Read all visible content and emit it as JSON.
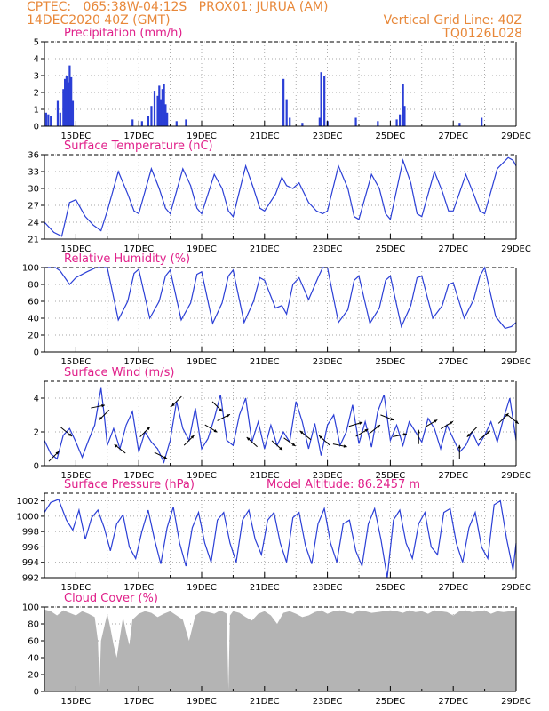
{
  "header": {
    "left_line1": "CPTEC:   065:38W-04:12S   PROX01: JURUA (AM)",
    "left_line2": "14DEC2020 40Z (GMT)",
    "right_line1": "Vertical Grid Line: 40Z",
    "right_line2": "TQ0126L028"
  },
  "colors": {
    "header_text": "#e8883a",
    "panel_title": "#e0208a",
    "series_line": "#2b3fd6",
    "cloud_fill": "#b4b4b4"
  },
  "x_ticks": [
    "15DEC",
    "17DEC",
    "19DEC",
    "21DEC",
    "23DEC",
    "25DEC",
    "27DEC",
    "29DEC"
  ],
  "chart_data": [
    {
      "type": "bar",
      "title": "Precipitation  (mm/h)",
      "x_range": [
        14.0,
        29.0
      ],
      "ylim": [
        0,
        5
      ],
      "yticks": [
        0,
        1,
        2,
        3,
        4,
        5
      ],
      "grid": true,
      "x": [
        14.05,
        14.12,
        14.2,
        14.42,
        14.5,
        14.6,
        14.65,
        14.7,
        14.75,
        14.8,
        14.85,
        14.9,
        16.8,
        17.1,
        17.3,
        17.4,
        17.5,
        17.6,
        17.65,
        17.7,
        17.75,
        17.8,
        17.85,
        17.9,
        18.2,
        18.5,
        21.6,
        21.7,
        21.8,
        22.2,
        22.75,
        22.8,
        22.9,
        23.0,
        23.9,
        24.6,
        25.2,
        25.3,
        25.4,
        25.45,
        27.2,
        27.9
      ],
      "values": [
        0.8,
        0.7,
        0.6,
        1.5,
        0.8,
        2.2,
        2.8,
        3.0,
        2.6,
        3.6,
        2.9,
        1.5,
        0.4,
        0.3,
        0.6,
        1.2,
        2.1,
        1.8,
        2.4,
        1.6,
        2.2,
        2.5,
        1.3,
        0.8,
        0.3,
        0.4,
        2.8,
        1.6,
        0.5,
        0.2,
        0.5,
        3.2,
        3.0,
        0.3,
        0.5,
        0.3,
        0.4,
        0.7,
        2.5,
        1.2,
        0.2,
        0.5
      ]
    },
    {
      "type": "line",
      "title": "Surface Temperature  (nC)",
      "x_range": [
        14.0,
        29.0
      ],
      "ylim": [
        21,
        36
      ],
      "yticks": [
        21,
        24,
        27,
        30,
        33,
        36
      ],
      "grid": true,
      "series": [
        {
          "x": [
            14.0,
            14.3,
            14.55,
            14.8,
            15.0,
            15.3,
            15.55,
            15.8,
            16.0,
            16.35,
            16.65,
            16.85,
            17.0,
            17.4,
            17.65,
            17.85,
            18.0,
            18.4,
            18.65,
            18.85,
            19.0,
            19.4,
            19.65,
            19.85,
            20.0,
            20.4,
            20.65,
            20.85,
            21.0,
            21.35,
            21.55,
            21.7,
            21.9,
            22.1,
            22.4,
            22.65,
            22.85,
            23.0,
            23.35,
            23.65,
            23.85,
            24.0,
            24.4,
            24.65,
            24.85,
            25.0,
            25.4,
            25.65,
            25.85,
            26.0,
            26.4,
            26.65,
            26.85,
            27.0,
            27.4,
            27.65,
            27.85,
            28.0,
            28.4,
            28.75,
            28.9,
            29.0
          ],
          "values": [
            24.0,
            22.2,
            21.5,
            27.5,
            28.0,
            25.0,
            23.5,
            22.5,
            26.0,
            33.0,
            29.0,
            26.0,
            25.5,
            33.5,
            30.0,
            26.5,
            25.5,
            33.5,
            30.5,
            26.5,
            25.5,
            32.5,
            30.0,
            26.0,
            25.0,
            34.0,
            30.0,
            26.5,
            26.0,
            29.0,
            32.0,
            30.5,
            30.0,
            31.0,
            27.5,
            26.0,
            25.5,
            26.0,
            34.0,
            30.0,
            25.0,
            24.5,
            32.5,
            30.0,
            25.5,
            24.5,
            35.0,
            31.0,
            25.5,
            25.0,
            33.0,
            29.5,
            26.0,
            26.0,
            32.5,
            29.0,
            26.0,
            25.5,
            33.5,
            35.5,
            35.0,
            34.0
          ]
        }
      ]
    },
    {
      "type": "line",
      "title": "Relative Humidity  (%)",
      "x_range": [
        14.0,
        29.0
      ],
      "ylim": [
        0,
        100
      ],
      "yticks": [
        0,
        20,
        40,
        60,
        80,
        100
      ],
      "grid": true,
      "series": [
        {
          "x": [
            14.0,
            14.2,
            14.35,
            14.5,
            14.65,
            14.8,
            15.0,
            15.35,
            15.65,
            15.85,
            16.0,
            16.35,
            16.65,
            16.85,
            17.0,
            17.35,
            17.65,
            17.85,
            18.0,
            18.35,
            18.65,
            18.85,
            19.0,
            19.35,
            19.65,
            19.85,
            20.0,
            20.35,
            20.65,
            20.85,
            21.0,
            21.35,
            21.55,
            21.7,
            21.9,
            22.1,
            22.4,
            22.7,
            22.85,
            23.0,
            23.35,
            23.65,
            23.85,
            24.0,
            24.35,
            24.65,
            24.85,
            25.0,
            25.35,
            25.65,
            25.85,
            26.0,
            26.35,
            26.65,
            26.85,
            27.0,
            27.35,
            27.65,
            27.85,
            28.0,
            28.35,
            28.65,
            28.85,
            29.0
          ],
          "values": [
            100,
            100,
            100,
            96,
            88,
            80,
            88,
            95,
            100,
            100,
            100,
            38,
            60,
            93,
            98,
            40,
            60,
            90,
            97,
            38,
            58,
            92,
            95,
            34,
            58,
            90,
            97,
            35,
            60,
            88,
            85,
            52,
            55,
            45,
            80,
            88,
            62,
            88,
            100,
            100,
            35,
            50,
            85,
            90,
            34,
            52,
            85,
            90,
            30,
            55,
            88,
            90,
            40,
            55,
            80,
            82,
            40,
            62,
            90,
            100,
            42,
            28,
            30,
            35
          ]
        }
      ]
    },
    {
      "type": "line",
      "title": "Surface Wind  (m/s)",
      "x_range": [
        14.0,
        29.0
      ],
      "ylim": [
        0,
        5
      ],
      "yticks": [
        0,
        2,
        4
      ],
      "grid": true,
      "series": [
        {
          "x": [
            14.0,
            14.2,
            14.4,
            14.6,
            14.8,
            15.0,
            15.2,
            15.4,
            15.6,
            15.8,
            15.9,
            16.0,
            16.2,
            16.4,
            16.6,
            16.8,
            17.0,
            17.2,
            17.4,
            17.6,
            17.8,
            18.0,
            18.2,
            18.4,
            18.6,
            18.8,
            19.0,
            19.2,
            19.4,
            19.6,
            19.8,
            20.0,
            20.2,
            20.4,
            20.6,
            20.8,
            21.0,
            21.2,
            21.4,
            21.6,
            21.8,
            22.0,
            22.2,
            22.4,
            22.6,
            22.8,
            23.0,
            23.2,
            23.4,
            23.6,
            23.8,
            24.0,
            24.2,
            24.4,
            24.6,
            24.8,
            25.0,
            25.2,
            25.4,
            25.6,
            25.8,
            26.0,
            26.2,
            26.4,
            26.6,
            26.8,
            27.0,
            27.2,
            27.4,
            27.6,
            27.8,
            28.0,
            28.2,
            28.4,
            28.6,
            28.8,
            29.0
          ],
          "values": [
            1.5,
            0.7,
            0.4,
            1.8,
            2.2,
            1.4,
            0.5,
            1.5,
            2.4,
            4.6,
            3.0,
            1.2,
            2.2,
            1.0,
            2.4,
            3.2,
            0.8,
            2.0,
            1.4,
            1.0,
            0.2,
            1.5,
            3.8,
            2.2,
            1.5,
            3.4,
            1.0,
            1.6,
            2.8,
            4.2,
            1.5,
            1.2,
            3.0,
            4.0,
            1.4,
            2.6,
            1.0,
            2.4,
            1.2,
            2.0,
            1.4,
            3.8,
            2.6,
            1.0,
            2.5,
            0.6,
            2.4,
            3.0,
            1.2,
            2.0,
            3.6,
            1.3,
            2.6,
            1.1,
            3.2,
            4.2,
            1.5,
            2.4,
            1.2,
            2.6,
            2.0,
            1.4,
            2.8,
            2.2,
            1.0,
            2.4,
            1.6,
            0.8,
            1.2,
            2.0,
            1.2,
            1.8,
            2.6,
            1.4,
            2.8,
            4.0,
            1.5
          ]
        }
      ],
      "wind_barbs": {
        "x": [
          14.3,
          14.7,
          15.7,
          15.9,
          16.4,
          17.2,
          17.7,
          18.2,
          18.6,
          19.3,
          19.5,
          19.7,
          20.6,
          21.4,
          21.8,
          22.3,
          22.9,
          23.4,
          23.9,
          24.1,
          24.5,
          24.9,
          25.3,
          25.9,
          26.3,
          26.8,
          27.2,
          27.6,
          28.0,
          28.6,
          28.9
        ],
        "u": [
          1,
          1,
          1,
          -1,
          -1,
          1,
          1,
          -1,
          1,
          1,
          1,
          1,
          -1,
          1,
          1,
          -1,
          -1,
          1,
          1,
          1,
          1,
          1,
          1,
          0,
          1,
          1,
          0,
          -1,
          1,
          1,
          1
        ],
        "v": [
          1,
          -0.8,
          0.2,
          -1,
          0.8,
          1,
          -0.5,
          -1,
          1,
          -0.6,
          -1,
          0.5,
          0.9,
          -0.9,
          -0.7,
          0.8,
          0.9,
          -0.2,
          0.3,
          0.6,
          0.8,
          -0.4,
          0.2,
          1,
          0.6,
          0.6,
          1,
          -1,
          0.8,
          1,
          -0.8
        ]
      }
    },
    {
      "type": "line",
      "title": "Surface Pressure  (hPa)",
      "annotation": "Model Altitude: 86.2457  m",
      "x_range": [
        14.0,
        29.0
      ],
      "ylim": [
        992,
        1003
      ],
      "yticks": [
        992,
        994,
        996,
        998,
        1000,
        1002
      ],
      "grid": true,
      "series": [
        {
          "x": [
            14.0,
            14.2,
            14.45,
            14.7,
            14.9,
            15.1,
            15.3,
            15.5,
            15.7,
            15.9,
            16.1,
            16.3,
            16.5,
            16.7,
            16.9,
            17.1,
            17.3,
            17.5,
            17.7,
            17.9,
            18.1,
            18.3,
            18.5,
            18.7,
            18.9,
            19.1,
            19.3,
            19.5,
            19.7,
            19.9,
            20.1,
            20.3,
            20.5,
            20.7,
            20.9,
            21.1,
            21.3,
            21.5,
            21.7,
            21.9,
            22.1,
            22.3,
            22.5,
            22.7,
            22.9,
            23.1,
            23.3,
            23.5,
            23.7,
            23.9,
            24.1,
            24.3,
            24.5,
            24.7,
            24.9,
            25.1,
            25.3,
            25.5,
            25.7,
            25.9,
            26.1,
            26.3,
            26.5,
            26.7,
            26.9,
            27.1,
            27.3,
            27.5,
            27.7,
            27.9,
            28.1,
            28.3,
            28.5,
            28.7,
            28.9,
            29.0
          ],
          "values": [
            1000.5,
            1001.8,
            1002.2,
            999.5,
            998.2,
            1000.8,
            997.0,
            999.8,
            1000.8,
            998.5,
            995.5,
            999.0,
            1000.2,
            996.0,
            994.5,
            998.0,
            1000.8,
            997.0,
            993.8,
            998.5,
            1001.2,
            996.5,
            993.5,
            998.5,
            1000.5,
            996.5,
            994.0,
            999.5,
            1000.5,
            996.5,
            994.0,
            999.5,
            1000.8,
            997.0,
            995.0,
            999.5,
            1000.5,
            996.5,
            994.0,
            999.8,
            1000.5,
            996.2,
            993.8,
            999.0,
            1001.0,
            996.5,
            994.0,
            999.0,
            999.5,
            995.5,
            993.5,
            999.0,
            1001.0,
            997.0,
            992.0,
            999.5,
            1000.8,
            996.5,
            994.5,
            999.0,
            1000.5,
            996.0,
            995.0,
            1000.5,
            1001.0,
            996.5,
            994.0,
            998.5,
            1000.5,
            996.0,
            994.5,
            1001.5,
            1002.0,
            997.0,
            993.0,
            996.5
          ]
        }
      ]
    },
    {
      "type": "area",
      "title": "Cloud Cover  (%)",
      "x_range": [
        14.0,
        29.0
      ],
      "ylim": [
        0,
        100
      ],
      "yticks": [
        0,
        20,
        40,
        60,
        80,
        100
      ],
      "grid": true,
      "series": [
        {
          "x": [
            14.0,
            14.2,
            14.4,
            14.6,
            14.8,
            15.0,
            15.2,
            15.4,
            15.6,
            15.7,
            15.75,
            15.8,
            16.0,
            16.1,
            16.2,
            16.3,
            16.5,
            16.6,
            16.7,
            16.8,
            17.0,
            17.2,
            17.4,
            17.6,
            17.8,
            18.0,
            18.2,
            18.4,
            18.6,
            18.8,
            19.0,
            19.2,
            19.4,
            19.6,
            19.8,
            19.85,
            19.9,
            20.0,
            20.2,
            20.4,
            20.6,
            20.8,
            21.0,
            21.2,
            21.4,
            21.6,
            21.8,
            22.0,
            22.2,
            22.4,
            22.6,
            22.8,
            23.0,
            23.2,
            23.4,
            23.6,
            23.8,
            24.0,
            24.2,
            24.4,
            24.6,
            24.8,
            25.0,
            25.2,
            25.4,
            25.6,
            25.8,
            26.0,
            26.2,
            26.4,
            26.6,
            26.8,
            27.0,
            27.2,
            27.4,
            27.6,
            27.8,
            28.0,
            28.2,
            28.4,
            28.6,
            28.8,
            29.0
          ],
          "values": [
            97,
            95,
            90,
            96,
            93,
            90,
            95,
            92,
            88,
            60,
            5,
            60,
            92,
            75,
            55,
            40,
            88,
            70,
            55,
            85,
            92,
            95,
            93,
            88,
            92,
            95,
            90,
            85,
            60,
            90,
            95,
            94,
            92,
            96,
            92,
            2,
            90,
            95,
            93,
            88,
            84,
            92,
            95,
            90,
            80,
            93,
            95,
            92,
            88,
            90,
            94,
            96,
            92,
            95,
            96,
            94,
            92,
            96,
            95,
            93,
            94,
            95,
            96,
            95,
            93,
            96,
            94,
            95,
            92,
            96,
            95,
            94,
            90,
            95,
            96,
            94,
            95,
            96,
            92,
            95,
            94,
            95,
            96
          ]
        }
      ]
    }
  ]
}
